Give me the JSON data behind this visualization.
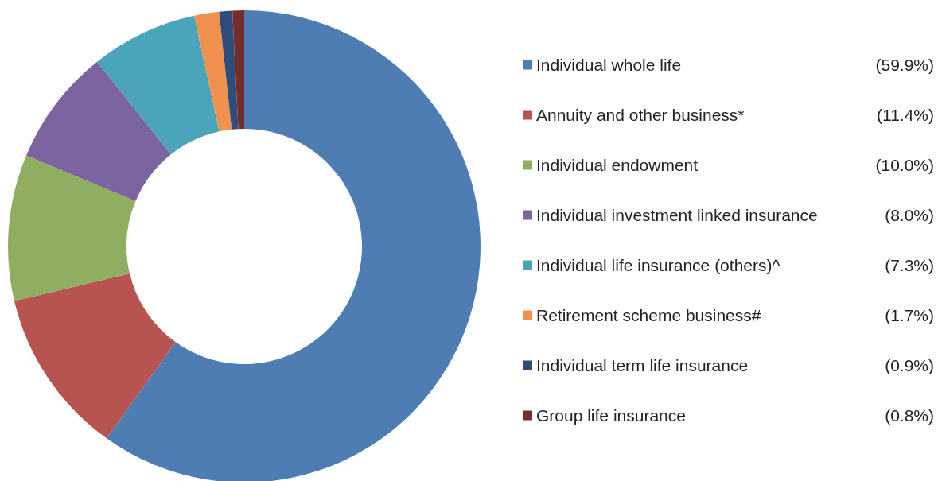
{
  "chart_data": {
    "type": "donut",
    "categories": [
      "Individual whole life",
      "Annuity and other business*",
      "Individual endowment",
      "Individual investment linked insurance",
      "Individual life insurance (others)^",
      "Retirement scheme business#",
      "Individual term life insurance",
      "Group life insurance"
    ],
    "values": [
      59.9,
      11.4,
      10.0,
      8.0,
      7.3,
      1.7,
      0.9,
      0.8
    ],
    "colors": [
      "#4e7db3",
      "#b85450",
      "#8fae62",
      "#7b64a0",
      "#4aa5bb",
      "#f0914f",
      "#2f4d7a",
      "#742d2c"
    ],
    "value_labels": [
      "(59.9%)",
      "(11.4%)",
      "(10.0%)",
      "(8.0%)",
      "(7.3%)",
      "(1.7%)",
      "(0.9%)",
      "(0.8%)"
    ],
    "legend": "right"
  }
}
